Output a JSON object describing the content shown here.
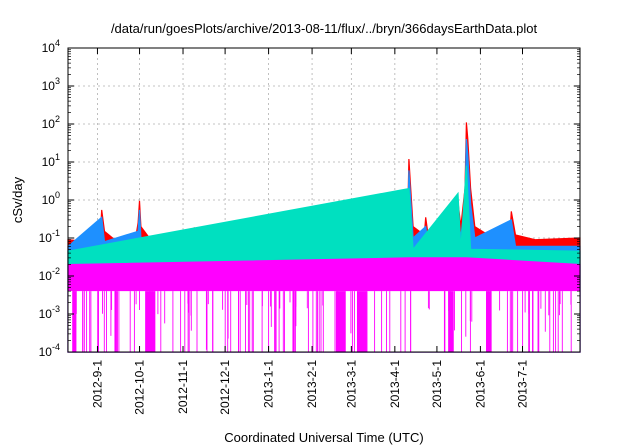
{
  "chart_data": {
    "type": "area",
    "title": "/data/run/goesPlots/archive/2013-08-11/flux/../bryn/366daysEarthData.plot",
    "xlabel": "Coordinated Universal Time (UTC)",
    "ylabel": "cSv/day",
    "yscale": "log",
    "ylim": [
      0.0001,
      10000
    ],
    "xlim": [
      "2012-08-11",
      "2013-08-11"
    ],
    "y_ticks": [
      {
        "base": "10",
        "exp": "-4"
      },
      {
        "base": "10",
        "exp": "-3"
      },
      {
        "base": "10",
        "exp": "-2"
      },
      {
        "base": "10",
        "exp": "-1"
      },
      {
        "base": "10",
        "exp": "0"
      },
      {
        "base": "10",
        "exp": "1"
      },
      {
        "base": "10",
        "exp": "2"
      },
      {
        "base": "10",
        "exp": "3"
      },
      {
        "base": "10",
        "exp": "4"
      }
    ],
    "x_ticks": [
      {
        "label": "2012-9-1",
        "date": "2012-09-01"
      },
      {
        "label": "2012-10-1",
        "date": "2012-10-01"
      },
      {
        "label": "2012-11-1",
        "date": "2012-11-01"
      },
      {
        "label": "2012-12-1",
        "date": "2012-12-01"
      },
      {
        "label": "2013-1-1",
        "date": "2013-01-01"
      },
      {
        "label": "2013-2-1",
        "date": "2013-02-01"
      },
      {
        "label": "2013-3-1",
        "date": "2013-03-01"
      },
      {
        "label": "2013-4-1",
        "date": "2013-04-01"
      },
      {
        "label": "2013-5-1",
        "date": "2013-05-01"
      },
      {
        "label": "2013-6-1",
        "date": "2013-06-01"
      },
      {
        "label": "2013-7-1",
        "date": "2013-07-01"
      }
    ],
    "grid": true,
    "legend": false,
    "series": [
      {
        "color": "#ff0000",
        "points": [
          [
            "2012-08-11",
            0.09
          ],
          [
            "2012-08-25",
            0.08
          ],
          [
            "2012-09-03",
            0.12
          ],
          [
            "2012-09-04",
            0.55
          ],
          [
            "2012-09-06",
            0.15
          ],
          [
            "2012-09-15",
            0.08
          ],
          [
            "2012-09-28",
            0.09
          ],
          [
            "2012-09-30",
            0.25
          ],
          [
            "2012-10-01",
            0.95
          ],
          [
            "2012-10-02",
            0.2
          ],
          [
            "2012-10-10",
            0.08
          ],
          [
            "2012-11-01",
            0.08
          ],
          [
            "2012-11-08",
            0.09
          ],
          [
            "2012-11-09",
            0.19
          ],
          [
            "2012-11-11",
            0.09
          ],
          [
            "2012-12-01",
            0.08
          ],
          [
            "2013-01-01",
            0.08
          ],
          [
            "2013-02-01",
            0.08
          ],
          [
            "2013-03-01",
            0.08
          ],
          [
            "2013-03-17",
            0.12
          ],
          [
            "2013-03-18",
            0.42
          ],
          [
            "2013-03-20",
            0.12
          ],
          [
            "2013-04-05",
            0.09
          ],
          [
            "2013-04-10",
            0.2
          ],
          [
            "2013-04-11",
            12
          ],
          [
            "2013-04-12",
            3
          ],
          [
            "2013-04-14",
            0.2
          ],
          [
            "2013-04-22",
            0.12
          ],
          [
            "2013-04-23",
            0.35
          ],
          [
            "2013-04-25",
            0.1
          ],
          [
            "2013-05-13",
            0.12
          ],
          [
            "2013-05-15",
            0.5
          ],
          [
            "2013-05-16",
            0.9
          ],
          [
            "2013-05-18",
            0.2
          ],
          [
            "2013-05-21",
            2
          ],
          [
            "2013-05-22",
            110
          ],
          [
            "2013-05-23",
            40
          ],
          [
            "2013-05-25",
            2
          ],
          [
            "2013-05-28",
            0.2
          ],
          [
            "2013-06-10",
            0.1
          ],
          [
            "2013-06-22",
            0.12
          ],
          [
            "2013-06-23",
            0.5
          ],
          [
            "2013-06-26",
            0.12
          ],
          [
            "2013-07-10",
            0.09
          ],
          [
            "2013-08-11",
            0.1
          ]
        ]
      },
      {
        "color": "#1e90ff",
        "points": [
          [
            "2012-08-11",
            0.06
          ],
          [
            "2012-09-04",
            0.35
          ],
          [
            "2012-09-06",
            0.08
          ],
          [
            "2012-09-30",
            0.15
          ],
          [
            "2012-10-01",
            0.55
          ],
          [
            "2012-10-02",
            0.1
          ],
          [
            "2012-11-09",
            0.12
          ],
          [
            "2012-11-11",
            0.06
          ],
          [
            "2013-03-18",
            0.28
          ],
          [
            "2013-03-20",
            0.06
          ],
          [
            "2013-04-10",
            0.1
          ],
          [
            "2013-04-11",
            6
          ],
          [
            "2013-04-12",
            1.5
          ],
          [
            "2013-04-14",
            0.1
          ],
          [
            "2013-04-23",
            0.2
          ],
          [
            "2013-04-25",
            0.06
          ],
          [
            "2013-05-16",
            0.5
          ],
          [
            "2013-05-18",
            0.1
          ],
          [
            "2013-05-21",
            1
          ],
          [
            "2013-05-22",
            40
          ],
          [
            "2013-05-23",
            15
          ],
          [
            "2013-05-25",
            0.8
          ],
          [
            "2013-05-28",
            0.1
          ],
          [
            "2013-06-23",
            0.3
          ],
          [
            "2013-06-26",
            0.06
          ],
          [
            "2013-08-11",
            0.06
          ]
        ]
      },
      {
        "color": "#00e0c0",
        "points": [
          [
            "2012-08-11",
            0.045
          ],
          [
            "2013-04-11",
            2
          ],
          [
            "2013-04-14",
            0.05
          ],
          [
            "2013-05-16",
            1.5
          ],
          [
            "2013-05-18",
            0.05
          ],
          [
            "2013-05-22",
            8
          ],
          [
            "2013-05-25",
            0.05
          ],
          [
            "2013-08-11",
            0.045
          ]
        ]
      },
      {
        "color": "#ff00ff",
        "points": [
          [
            "2012-08-11",
            0.02
          ],
          [
            "2013-04-11",
            0.03
          ],
          [
            "2013-05-22",
            0.03
          ],
          [
            "2013-08-11",
            0.02
          ]
        ]
      }
    ],
    "drops": [
      [
        "2012-08-14",
        "2012-08-17"
      ],
      [
        "2012-10-05",
        "2012-10-12"
      ],
      [
        "2013-02-18",
        "2013-02-25"
      ],
      [
        "2013-03-05",
        "2013-03-12"
      ],
      [
        "2013-05-09",
        "2013-05-13"
      ],
      [
        "2013-06-05",
        "2013-06-09"
      ]
    ]
  }
}
